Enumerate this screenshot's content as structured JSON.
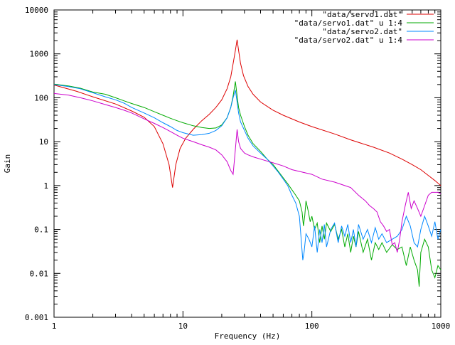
{
  "chart_data": {
    "type": "line",
    "title": "",
    "xlabel": "Frequency (Hz)",
    "ylabel": "Gain",
    "xscale": "log",
    "yscale": "log",
    "xlim": [
      1,
      1000
    ],
    "ylim": [
      0.001,
      10000
    ],
    "xticks": [
      1,
      10,
      100,
      1000
    ],
    "xtick_labels": [
      "1",
      "10",
      "100",
      "1000"
    ],
    "yticks": [
      0.001,
      0.01,
      0.1,
      1,
      10,
      100,
      1000,
      10000
    ],
    "ytick_labels": [
      "0.001",
      "0.01",
      "0.1",
      "1",
      "10",
      "100",
      "1000",
      "10000"
    ],
    "grid": false,
    "legend_position": "top-right",
    "series": [
      {
        "name": "\"data/servo1.dat\"",
        "color": "#dd0000",
        "points": [
          [
            1,
            195
          ],
          [
            1.5,
            140
          ],
          [
            2,
            105
          ],
          [
            3,
            72
          ],
          [
            4,
            50
          ],
          [
            5,
            36
          ],
          [
            6,
            22
          ],
          [
            7,
            9
          ],
          [
            7.8,
            3
          ],
          [
            8.3,
            0.9
          ],
          [
            8.8,
            3
          ],
          [
            9.5,
            7
          ],
          [
            10.5,
            12
          ],
          [
            12,
            19
          ],
          [
            14,
            30
          ],
          [
            16,
            42
          ],
          [
            18,
            60
          ],
          [
            20,
            90
          ],
          [
            22,
            160
          ],
          [
            23.5,
            300
          ],
          [
            24.5,
            600
          ],
          [
            25.5,
            1200
          ],
          [
            26.3,
            2100
          ],
          [
            27,
            1200
          ],
          [
            28,
            600
          ],
          [
            29.5,
            320
          ],
          [
            32,
            180
          ],
          [
            35,
            120
          ],
          [
            40,
            80
          ],
          [
            50,
            52
          ],
          [
            60,
            40
          ],
          [
            80,
            28
          ],
          [
            100,
            22
          ],
          [
            150,
            15
          ],
          [
            200,
            11
          ],
          [
            300,
            7.5
          ],
          [
            400,
            5.5
          ],
          [
            500,
            4
          ],
          [
            600,
            3
          ],
          [
            700,
            2.3
          ],
          [
            800,
            1.7
          ],
          [
            900,
            1.3
          ],
          [
            1000,
            1.0
          ]
        ]
      },
      {
        "name": "\"data/servo1.dat\" u 1:4",
        "color": "#00aa00",
        "points": [
          [
            1,
            205
          ],
          [
            1.3,
            185
          ],
          [
            1.6,
            165
          ],
          [
            2,
            135
          ],
          [
            2.5,
            120
          ],
          [
            3,
            100
          ],
          [
            3.5,
            85
          ],
          [
            4,
            74
          ],
          [
            5,
            60
          ],
          [
            6,
            48
          ],
          [
            7,
            40
          ],
          [
            8,
            34
          ],
          [
            9,
            30
          ],
          [
            10,
            27
          ],
          [
            12,
            23
          ],
          [
            14,
            21
          ],
          [
            16,
            20
          ],
          [
            18,
            20.5
          ],
          [
            20,
            24
          ],
          [
            22,
            35
          ],
          [
            23.5,
            60
          ],
          [
            24.5,
            110
          ],
          [
            25.5,
            235
          ],
          [
            26.3,
            110
          ],
          [
            27,
            60
          ],
          [
            28,
            40
          ],
          [
            30,
            22
          ],
          [
            32,
            14
          ],
          [
            35,
            9
          ],
          [
            40,
            6
          ],
          [
            45,
            4
          ],
          [
            50,
            3
          ],
          [
            55,
            2.1
          ],
          [
            60,
            1.5
          ],
          [
            65,
            1.1
          ],
          [
            70,
            0.8
          ],
          [
            75,
            0.6
          ],
          [
            80,
            0.45
          ],
          [
            84,
            0.25
          ],
          [
            86,
            0.12
          ],
          [
            88,
            0.2
          ],
          [
            90,
            0.45
          ],
          [
            94,
            0.25
          ],
          [
            97,
            0.15
          ],
          [
            100,
            0.2
          ],
          [
            105,
            0.1
          ],
          [
            110,
            0.14
          ],
          [
            115,
            0.05
          ],
          [
            120,
            0.12
          ],
          [
            125,
            0.06
          ],
          [
            130,
            0.14
          ],
          [
            140,
            0.09
          ],
          [
            150,
            0.13
          ],
          [
            160,
            0.06
          ],
          [
            170,
            0.1
          ],
          [
            180,
            0.04
          ],
          [
            190,
            0.08
          ],
          [
            200,
            0.03
          ],
          [
            210,
            0.07
          ],
          [
            220,
            0.04
          ],
          [
            230,
            0.09
          ],
          [
            250,
            0.03
          ],
          [
            270,
            0.06
          ],
          [
            290,
            0.02
          ],
          [
            310,
            0.05
          ],
          [
            330,
            0.035
          ],
          [
            350,
            0.05
          ],
          [
            380,
            0.03
          ],
          [
            420,
            0.045
          ],
          [
            460,
            0.035
          ],
          [
            500,
            0.04
          ],
          [
            540,
            0.015
          ],
          [
            580,
            0.04
          ],
          [
            620,
            0.02
          ],
          [
            660,
            0.012
          ],
          [
            680,
            0.005
          ],
          [
            700,
            0.03
          ],
          [
            750,
            0.06
          ],
          [
            800,
            0.04
          ],
          [
            850,
            0.012
          ],
          [
            900,
            0.008
          ],
          [
            950,
            0.015
          ],
          [
            1000,
            0.012
          ]
        ]
      },
      {
        "name": "\"data/servo2.dat\"",
        "color": "#0088ff",
        "points": [
          [
            1,
            200
          ],
          [
            1.3,
            180
          ],
          [
            1.6,
            160
          ],
          [
            2,
            130
          ],
          [
            2.5,
            105
          ],
          [
            3,
            90
          ],
          [
            3.5,
            75
          ],
          [
            4,
            60
          ],
          [
            5,
            45
          ],
          [
            6,
            35
          ],
          [
            7,
            27
          ],
          [
            8,
            22
          ],
          [
            9,
            18
          ],
          [
            10,
            16
          ],
          [
            12,
            14
          ],
          [
            14,
            14.5
          ],
          [
            16,
            15.5
          ],
          [
            18,
            18
          ],
          [
            20,
            23
          ],
          [
            22,
            35
          ],
          [
            23.5,
            60
          ],
          [
            24.5,
            100
          ],
          [
            25.5,
            150
          ],
          [
            26.3,
            80
          ],
          [
            27,
            45
          ],
          [
            28,
            28
          ],
          [
            30,
            18
          ],
          [
            32,
            12
          ],
          [
            35,
            8
          ],
          [
            40,
            5.5
          ],
          [
            45,
            4
          ],
          [
            50,
            2.8
          ],
          [
            55,
            2
          ],
          [
            60,
            1.4
          ],
          [
            65,
            1
          ],
          [
            70,
            0.6
          ],
          [
            75,
            0.4
          ],
          [
            80,
            0.2
          ],
          [
            83,
            0.05
          ],
          [
            85,
            0.02
          ],
          [
            87,
            0.03
          ],
          [
            90,
            0.08
          ],
          [
            95,
            0.06
          ],
          [
            100,
            0.04
          ],
          [
            105,
            0.12
          ],
          [
            110,
            0.03
          ],
          [
            115,
            0.1
          ],
          [
            120,
            0.05
          ],
          [
            125,
            0.13
          ],
          [
            130,
            0.04
          ],
          [
            140,
            0.1
          ],
          [
            150,
            0.14
          ],
          [
            160,
            0.05
          ],
          [
            170,
            0.12
          ],
          [
            180,
            0.07
          ],
          [
            190,
            0.13
          ],
          [
            200,
            0.05
          ],
          [
            210,
            0.1
          ],
          [
            220,
            0.04
          ],
          [
            230,
            0.13
          ],
          [
            250,
            0.06
          ],
          [
            270,
            0.1
          ],
          [
            290,
            0.05
          ],
          [
            310,
            0.11
          ],
          [
            330,
            0.06
          ],
          [
            350,
            0.08
          ],
          [
            380,
            0.05
          ],
          [
            420,
            0.06
          ],
          [
            460,
            0.07
          ],
          [
            500,
            0.1
          ],
          [
            540,
            0.2
          ],
          [
            580,
            0.12
          ],
          [
            620,
            0.05
          ],
          [
            660,
            0.04
          ],
          [
            700,
            0.1
          ],
          [
            750,
            0.2
          ],
          [
            800,
            0.12
          ],
          [
            850,
            0.07
          ],
          [
            900,
            0.15
          ],
          [
            950,
            0.06
          ],
          [
            1000,
            0.1
          ]
        ]
      },
      {
        "name": "\"data/servo2.dat\" u 1:4",
        "color": "#cc00cc",
        "points": [
          [
            1,
            125
          ],
          [
            1.3,
            115
          ],
          [
            1.6,
            100
          ],
          [
            2,
            85
          ],
          [
            2.5,
            70
          ],
          [
            3,
            60
          ],
          [
            3.5,
            52
          ],
          [
            4,
            45
          ],
          [
            5,
            33
          ],
          [
            6,
            26
          ],
          [
            7,
            21
          ],
          [
            8,
            17
          ],
          [
            9,
            14
          ],
          [
            10,
            12
          ],
          [
            12,
            10
          ],
          [
            14,
            8.5
          ],
          [
            16,
            7.5
          ],
          [
            18,
            6.5
          ],
          [
            20,
            5
          ],
          [
            22,
            3.5
          ],
          [
            23.5,
            2.2
          ],
          [
            24.5,
            1.8
          ],
          [
            25.3,
            5
          ],
          [
            26.3,
            19
          ],
          [
            27,
            10
          ],
          [
            28,
            7
          ],
          [
            30,
            5.5
          ],
          [
            32,
            5
          ],
          [
            35,
            4.5
          ],
          [
            40,
            4
          ],
          [
            50,
            3.3
          ],
          [
            60,
            2.8
          ],
          [
            70,
            2.3
          ],
          [
            80,
            2.1
          ],
          [
            100,
            1.8
          ],
          [
            120,
            1.4
          ],
          [
            150,
            1.2
          ],
          [
            180,
            1
          ],
          [
            200,
            0.9
          ],
          [
            230,
            0.6
          ],
          [
            260,
            0.45
          ],
          [
            280,
            0.35
          ],
          [
            300,
            0.3
          ],
          [
            320,
            0.25
          ],
          [
            340,
            0.15
          ],
          [
            360,
            0.12
          ],
          [
            380,
            0.09
          ],
          [
            400,
            0.1
          ],
          [
            420,
            0.045
          ],
          [
            440,
            0.05
          ],
          [
            460,
            0.03
          ],
          [
            480,
            0.06
          ],
          [
            500,
            0.15
          ],
          [
            530,
            0.35
          ],
          [
            560,
            0.7
          ],
          [
            590,
            0.3
          ],
          [
            620,
            0.45
          ],
          [
            660,
            0.3
          ],
          [
            700,
            0.2
          ],
          [
            750,
            0.35
          ],
          [
            800,
            0.6
          ],
          [
            850,
            0.7
          ],
          [
            900,
            0.7
          ],
          [
            950,
            0.7
          ],
          [
            1000,
            0.65
          ]
        ]
      }
    ]
  }
}
